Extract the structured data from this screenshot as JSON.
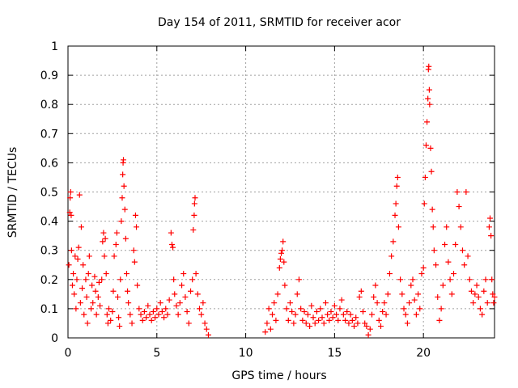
{
  "chart_data": {
    "type": "scatter",
    "title": "Day 154 of 2011, SRMTID for receiver acor",
    "xlabel": "GPS time / hours",
    "ylabel": "SRMTID / TECUs",
    "xlim": [
      0,
      24
    ],
    "ylim": [
      0,
      1
    ],
    "xticks": [
      0,
      5,
      10,
      15,
      20
    ],
    "yticks": [
      0,
      0.1,
      0.2,
      0.3,
      0.4,
      0.5,
      0.6,
      0.7,
      0.8,
      0.9,
      1
    ],
    "ytick_labels": [
      "0",
      "0.1",
      "0.2",
      "0.3",
      "0.4",
      "0.5",
      "0.6",
      "0.7",
      "0.8",
      "0.9",
      "1"
    ],
    "grid": true,
    "marker": "+",
    "series": [
      {
        "name": "acor",
        "color": "#ff0000",
        "points": [
          [
            0.05,
            0.25
          ],
          [
            0.1,
            0.43
          ],
          [
            0.12,
            0.48
          ],
          [
            0.15,
            0.5
          ],
          [
            0.18,
            0.42
          ],
          [
            0.2,
            0.3
          ],
          [
            0.25,
            0.18
          ],
          [
            0.3,
            0.22
          ],
          [
            0.35,
            0.15
          ],
          [
            0.4,
            0.28
          ],
          [
            0.45,
            0.1
          ],
          [
            0.5,
            0.2
          ],
          [
            0.55,
            0.27
          ],
          [
            0.6,
            0.31
          ],
          [
            0.65,
            0.49
          ],
          [
            0.7,
            0.12
          ],
          [
            0.75,
            0.38
          ],
          [
            0.8,
            0.17
          ],
          [
            0.85,
            0.25
          ],
          [
            0.9,
            0.08
          ],
          [
            1.0,
            0.2
          ],
          [
            1.05,
            0.14
          ],
          [
            1.1,
            0.05
          ],
          [
            1.15,
            0.22
          ],
          [
            1.2,
            0.28
          ],
          [
            1.3,
            0.1
          ],
          [
            1.35,
            0.18
          ],
          [
            1.4,
            0.12
          ],
          [
            1.5,
            0.21
          ],
          [
            1.55,
            0.16
          ],
          [
            1.6,
            0.08
          ],
          [
            1.7,
            0.14
          ],
          [
            1.75,
            0.19
          ],
          [
            1.8,
            0.11
          ],
          [
            1.9,
            0.2
          ],
          [
            1.95,
            0.33
          ],
          [
            2.0,
            0.36
          ],
          [
            2.05,
            0.28
          ],
          [
            2.1,
            0.34
          ],
          [
            2.15,
            0.22
          ],
          [
            2.2,
            0.08
          ],
          [
            2.25,
            0.05
          ],
          [
            2.3,
            0.1
          ],
          [
            2.4,
            0.06
          ],
          [
            2.5,
            0.09
          ],
          [
            2.55,
            0.16
          ],
          [
            2.6,
            0.28
          ],
          [
            2.7,
            0.32
          ],
          [
            2.75,
            0.36
          ],
          [
            2.8,
            0.14
          ],
          [
            2.85,
            0.07
          ],
          [
            2.9,
            0.04
          ],
          [
            2.95,
            0.2
          ],
          [
            3.0,
            0.4
          ],
          [
            3.05,
            0.48
          ],
          [
            3.08,
            0.56
          ],
          [
            3.1,
            0.6
          ],
          [
            3.12,
            0.61
          ],
          [
            3.15,
            0.52
          ],
          [
            3.2,
            0.44
          ],
          [
            3.25,
            0.34
          ],
          [
            3.3,
            0.22
          ],
          [
            3.35,
            0.16
          ],
          [
            3.4,
            0.12
          ],
          [
            3.5,
            0.08
          ],
          [
            3.6,
            0.05
          ],
          [
            3.7,
            0.3
          ],
          [
            3.75,
            0.26
          ],
          [
            3.8,
            0.42
          ],
          [
            3.85,
            0.38
          ],
          [
            3.9,
            0.18
          ],
          [
            4.0,
            0.1
          ],
          [
            4.1,
            0.08
          ],
          [
            4.2,
            0.06
          ],
          [
            4.3,
            0.09
          ],
          [
            4.4,
            0.07
          ],
          [
            4.5,
            0.11
          ],
          [
            4.6,
            0.08
          ],
          [
            4.7,
            0.06
          ],
          [
            4.8,
            0.09
          ],
          [
            4.9,
            0.07
          ],
          [
            5.0,
            0.1
          ],
          [
            5.1,
            0.08
          ],
          [
            5.2,
            0.12
          ],
          [
            5.3,
            0.09
          ],
          [
            5.4,
            0.07
          ],
          [
            5.5,
            0.1
          ],
          [
            5.6,
            0.08
          ],
          [
            5.7,
            0.13
          ],
          [
            5.8,
            0.36
          ],
          [
            5.85,
            0.32
          ],
          [
            5.9,
            0.31
          ],
          [
            5.95,
            0.2
          ],
          [
            6.0,
            0.15
          ],
          [
            6.1,
            0.11
          ],
          [
            6.2,
            0.08
          ],
          [
            6.3,
            0.12
          ],
          [
            6.4,
            0.18
          ],
          [
            6.5,
            0.22
          ],
          [
            6.6,
            0.14
          ],
          [
            6.7,
            0.09
          ],
          [
            6.8,
            0.05
          ],
          [
            6.9,
            0.16
          ],
          [
            7.0,
            0.2
          ],
          [
            7.05,
            0.37
          ],
          [
            7.1,
            0.42
          ],
          [
            7.12,
            0.46
          ],
          [
            7.15,
            0.48
          ],
          [
            7.2,
            0.22
          ],
          [
            7.3,
            0.15
          ],
          [
            7.4,
            0.1
          ],
          [
            7.5,
            0.08
          ],
          [
            7.6,
            0.12
          ],
          [
            7.7,
            0.05
          ],
          [
            7.8,
            0.03
          ],
          [
            7.9,
            0.01
          ],
          [
            11.1,
            0.02
          ],
          [
            11.2,
            0.05
          ],
          [
            11.3,
            0.1
          ],
          [
            11.4,
            0.03
          ],
          [
            11.5,
            0.08
          ],
          [
            11.6,
            0.12
          ],
          [
            11.7,
            0.06
          ],
          [
            11.8,
            0.15
          ],
          [
            11.9,
            0.24
          ],
          [
            11.95,
            0.27
          ],
          [
            12.0,
            0.29
          ],
          [
            12.05,
            0.3
          ],
          [
            12.1,
            0.33
          ],
          [
            12.15,
            0.26
          ],
          [
            12.2,
            0.18
          ],
          [
            12.3,
            0.1
          ],
          [
            12.4,
            0.06
          ],
          [
            12.5,
            0.12
          ],
          [
            12.6,
            0.09
          ],
          [
            12.7,
            0.05
          ],
          [
            12.8,
            0.08
          ],
          [
            12.9,
            0.15
          ],
          [
            13.0,
            0.2
          ],
          [
            13.1,
            0.1
          ],
          [
            13.2,
            0.06
          ],
          [
            13.3,
            0.09
          ],
          [
            13.4,
            0.05
          ],
          [
            13.5,
            0.08
          ],
          [
            13.6,
            0.04
          ],
          [
            13.7,
            0.11
          ],
          [
            13.8,
            0.07
          ],
          [
            13.9,
            0.05
          ],
          [
            14.0,
            0.09
          ],
          [
            14.1,
            0.06
          ],
          [
            14.2,
            0.1
          ],
          [
            14.3,
            0.07
          ],
          [
            14.4,
            0.05
          ],
          [
            14.5,
            0.12
          ],
          [
            14.6,
            0.08
          ],
          [
            14.7,
            0.06
          ],
          [
            14.8,
            0.09
          ],
          [
            14.9,
            0.07
          ],
          [
            15.0,
            0.11
          ],
          [
            15.1,
            0.08
          ],
          [
            15.2,
            0.06
          ],
          [
            15.3,
            0.1
          ],
          [
            15.4,
            0.13
          ],
          [
            15.5,
            0.08
          ],
          [
            15.6,
            0.06
          ],
          [
            15.7,
            0.09
          ],
          [
            15.8,
            0.05
          ],
          [
            15.9,
            0.08
          ],
          [
            16.0,
            0.06
          ],
          [
            16.1,
            0.04
          ],
          [
            16.2,
            0.07
          ],
          [
            16.3,
            0.05
          ],
          [
            16.4,
            0.14
          ],
          [
            16.5,
            0.16
          ],
          [
            16.6,
            0.09
          ],
          [
            16.7,
            0.05
          ],
          [
            16.8,
            0.04
          ],
          [
            16.9,
            0.01
          ],
          [
            17.0,
            0.03
          ],
          [
            17.1,
            0.08
          ],
          [
            17.2,
            0.14
          ],
          [
            17.3,
            0.18
          ],
          [
            17.4,
            0.12
          ],
          [
            17.5,
            0.06
          ],
          [
            17.6,
            0.04
          ],
          [
            17.7,
            0.09
          ],
          [
            17.8,
            0.12
          ],
          [
            17.9,
            0.08
          ],
          [
            18.0,
            0.15
          ],
          [
            18.1,
            0.22
          ],
          [
            18.2,
            0.28
          ],
          [
            18.3,
            0.33
          ],
          [
            18.4,
            0.42
          ],
          [
            18.45,
            0.46
          ],
          [
            18.5,
            0.52
          ],
          [
            18.55,
            0.55
          ],
          [
            18.6,
            0.38
          ],
          [
            18.7,
            0.2
          ],
          [
            18.8,
            0.15
          ],
          [
            18.9,
            0.1
          ],
          [
            19.0,
            0.08
          ],
          [
            19.1,
            0.05
          ],
          [
            19.2,
            0.12
          ],
          [
            19.3,
            0.18
          ],
          [
            19.4,
            0.2
          ],
          [
            19.5,
            0.13
          ],
          [
            19.6,
            0.08
          ],
          [
            19.7,
            0.15
          ],
          [
            19.8,
            0.1
          ],
          [
            19.9,
            0.22
          ],
          [
            20.0,
            0.24
          ],
          [
            20.05,
            0.46
          ],
          [
            20.1,
            0.55
          ],
          [
            20.15,
            0.66
          ],
          [
            20.2,
            0.74
          ],
          [
            20.25,
            0.82
          ],
          [
            20.28,
            0.92
          ],
          [
            20.3,
            0.93
          ],
          [
            20.33,
            0.85
          ],
          [
            20.35,
            0.8
          ],
          [
            20.4,
            0.65
          ],
          [
            20.45,
            0.57
          ],
          [
            20.5,
            0.44
          ],
          [
            20.55,
            0.38
          ],
          [
            20.6,
            0.3
          ],
          [
            20.7,
            0.25
          ],
          [
            20.8,
            0.14
          ],
          [
            20.9,
            0.06
          ],
          [
            21.0,
            0.1
          ],
          [
            21.1,
            0.18
          ],
          [
            21.2,
            0.32
          ],
          [
            21.3,
            0.38
          ],
          [
            21.4,
            0.26
          ],
          [
            21.5,
            0.2
          ],
          [
            21.6,
            0.15
          ],
          [
            21.7,
            0.22
          ],
          [
            21.8,
            0.32
          ],
          [
            21.9,
            0.5
          ],
          [
            22.0,
            0.45
          ],
          [
            22.1,
            0.38
          ],
          [
            22.2,
            0.3
          ],
          [
            22.3,
            0.25
          ],
          [
            22.4,
            0.5
          ],
          [
            22.5,
            0.28
          ],
          [
            22.6,
            0.2
          ],
          [
            22.7,
            0.16
          ],
          [
            22.8,
            0.12
          ],
          [
            22.9,
            0.15
          ],
          [
            23.0,
            0.18
          ],
          [
            23.1,
            0.14
          ],
          [
            23.2,
            0.1
          ],
          [
            23.3,
            0.08
          ],
          [
            23.4,
            0.16
          ],
          [
            23.5,
            0.2
          ],
          [
            23.6,
            0.12
          ],
          [
            23.7,
            0.38
          ],
          [
            23.75,
            0.41
          ],
          [
            23.8,
            0.35
          ],
          [
            23.85,
            0.2
          ],
          [
            23.9,
            0.15
          ],
          [
            23.95,
            0.12
          ],
          [
            24.0,
            0.14
          ]
        ]
      }
    ]
  }
}
